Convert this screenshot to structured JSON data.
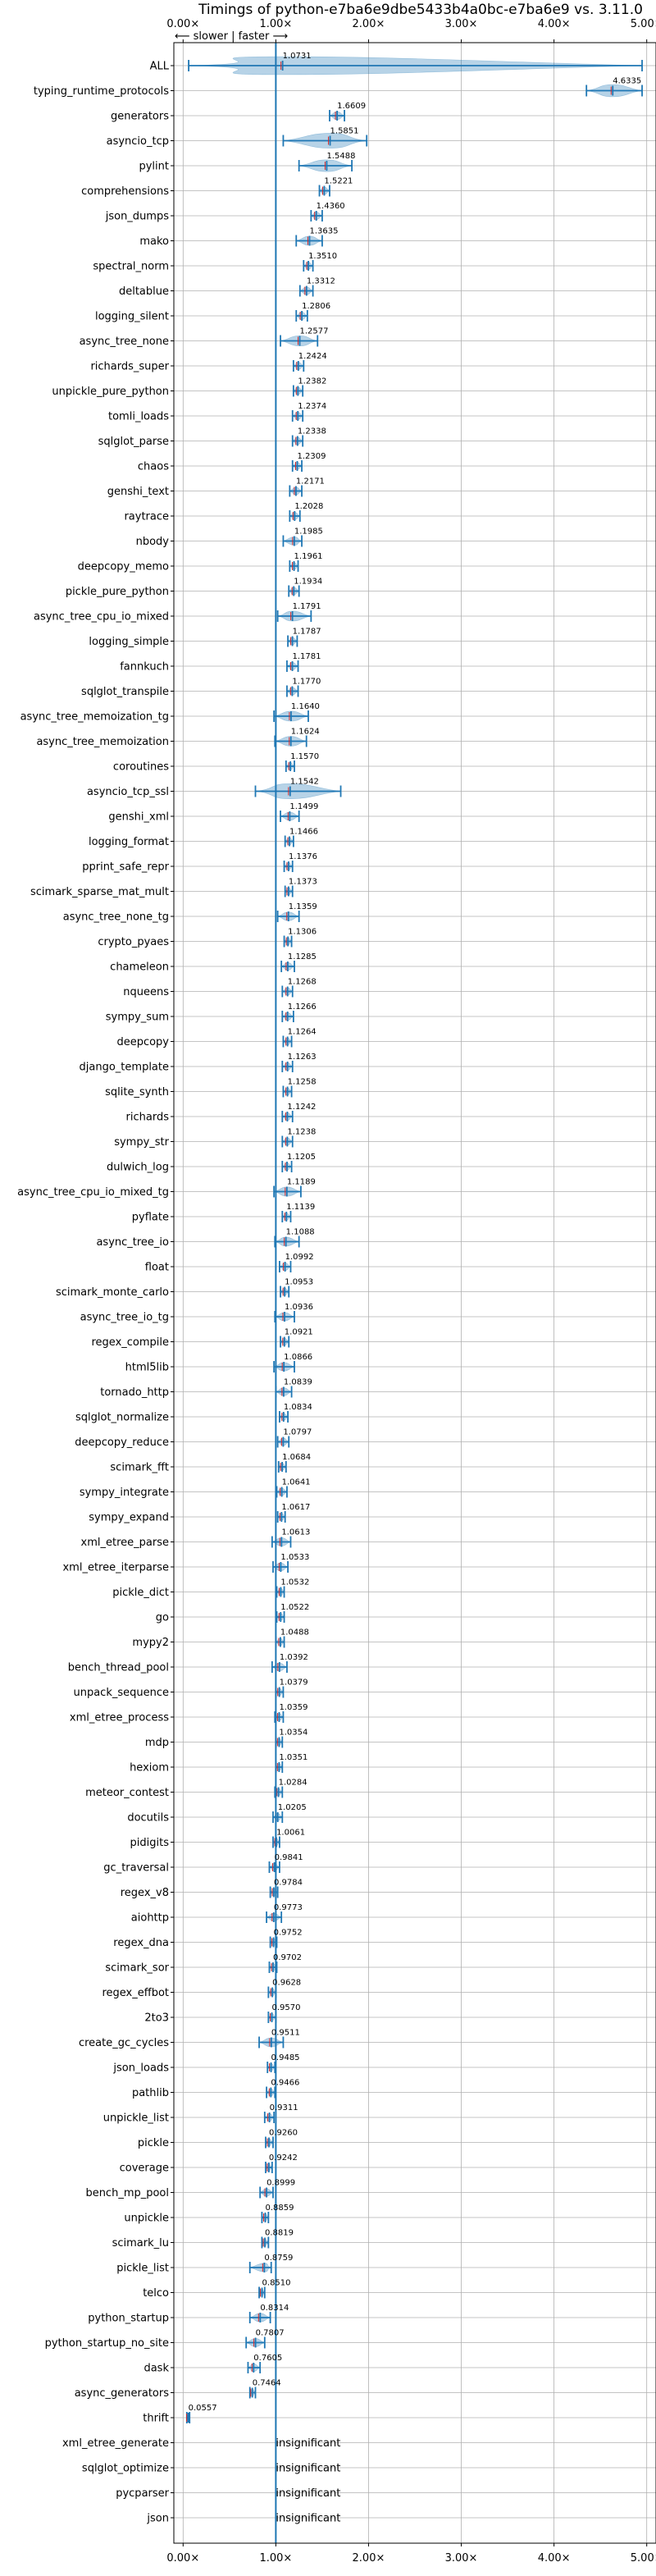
{
  "chart_data": {
    "type": "violin",
    "title": "Timings of python-e7ba6e9dbe5433b4a0bc-e7ba6e9 vs. 3.11.0",
    "annotation": "⟵ slower | faster ⟶",
    "xlabel": "",
    "ylabel": "",
    "xlim": [
      -0.1,
      5.1
    ],
    "x_ticks": [
      0,
      1,
      2,
      3,
      4,
      5
    ],
    "x_tick_labels": [
      "0.00×",
      "1.00×",
      "2.00×",
      "3.00×",
      "4.00×",
      "5.00×"
    ],
    "reference_line": 1.0,
    "grid": true,
    "insignificant_label": "insignificant",
    "colors": {
      "violin": "#1f77b4",
      "median": "#d62728",
      "reference": "#1f77b4"
    },
    "benchmarks": [
      {
        "name": "ALL",
        "value": "1.0731",
        "x": 1.0731,
        "lo": 0.06,
        "hi": 4.95
      },
      {
        "name": "typing_runtime_protocols",
        "value": "4.6335",
        "x": 4.6335,
        "lo": 4.35,
        "hi": 4.95
      },
      {
        "name": "generators",
        "value": "1.6609",
        "x": 1.6609,
        "lo": 1.58,
        "hi": 1.74
      },
      {
        "name": "asyncio_tcp",
        "value": "1.5851",
        "x": 1.5851,
        "lo": 1.08,
        "hi": 1.98
      },
      {
        "name": "pylint",
        "value": "1.5488",
        "x": 1.5488,
        "lo": 1.25,
        "hi": 1.82
      },
      {
        "name": "comprehensions",
        "value": "1.5221",
        "x": 1.5221,
        "lo": 1.47,
        "hi": 1.58
      },
      {
        "name": "json_dumps",
        "value": "1.4360",
        "x": 1.436,
        "lo": 1.38,
        "hi": 1.5
      },
      {
        "name": "mako",
        "value": "1.3635",
        "x": 1.3635,
        "lo": 1.22,
        "hi": 1.5
      },
      {
        "name": "spectral_norm",
        "value": "1.3510",
        "x": 1.351,
        "lo": 1.3,
        "hi": 1.4
      },
      {
        "name": "deltablue",
        "value": "1.3312",
        "x": 1.3312,
        "lo": 1.26,
        "hi": 1.4
      },
      {
        "name": "logging_silent",
        "value": "1.2806",
        "x": 1.2806,
        "lo": 1.22,
        "hi": 1.34
      },
      {
        "name": "async_tree_none",
        "value": "1.2577",
        "x": 1.2577,
        "lo": 1.05,
        "hi": 1.45
      },
      {
        "name": "richards_super",
        "value": "1.2424",
        "x": 1.2424,
        "lo": 1.19,
        "hi": 1.3
      },
      {
        "name": "unpickle_pure_python",
        "value": "1.2382",
        "x": 1.2382,
        "lo": 1.19,
        "hi": 1.29
      },
      {
        "name": "tomli_loads",
        "value": "1.2374",
        "x": 1.2374,
        "lo": 1.18,
        "hi": 1.29
      },
      {
        "name": "sqlglot_parse",
        "value": "1.2338",
        "x": 1.2338,
        "lo": 1.18,
        "hi": 1.29
      },
      {
        "name": "chaos",
        "value": "1.2309",
        "x": 1.2309,
        "lo": 1.18,
        "hi": 1.28
      },
      {
        "name": "genshi_text",
        "value": "1.2171",
        "x": 1.2171,
        "lo": 1.15,
        "hi": 1.28
      },
      {
        "name": "raytrace",
        "value": "1.2028",
        "x": 1.2028,
        "lo": 1.15,
        "hi": 1.26
      },
      {
        "name": "nbody",
        "value": "1.1985",
        "x": 1.1985,
        "lo": 1.08,
        "hi": 1.28
      },
      {
        "name": "deepcopy_memo",
        "value": "1.1961",
        "x": 1.1961,
        "lo": 1.15,
        "hi": 1.24
      },
      {
        "name": "pickle_pure_python",
        "value": "1.1934",
        "x": 1.1934,
        "lo": 1.14,
        "hi": 1.25
      },
      {
        "name": "async_tree_cpu_io_mixed",
        "value": "1.1791",
        "x": 1.1791,
        "lo": 1.02,
        "hi": 1.38
      },
      {
        "name": "logging_simple",
        "value": "1.1787",
        "x": 1.1787,
        "lo": 1.13,
        "hi": 1.23
      },
      {
        "name": "fannkuch",
        "value": "1.1781",
        "x": 1.1781,
        "lo": 1.12,
        "hi": 1.24
      },
      {
        "name": "sqlglot_transpile",
        "value": "1.1770",
        "x": 1.177,
        "lo": 1.12,
        "hi": 1.24
      },
      {
        "name": "async_tree_memoization_tg",
        "value": "1.1640",
        "x": 1.164,
        "lo": 0.98,
        "hi": 1.35
      },
      {
        "name": "async_tree_memoization",
        "value": "1.1624",
        "x": 1.1624,
        "lo": 0.99,
        "hi": 1.33
      },
      {
        "name": "coroutines",
        "value": "1.1570",
        "x": 1.157,
        "lo": 1.11,
        "hi": 1.2
      },
      {
        "name": "asyncio_tcp_ssl",
        "value": "1.1542",
        "x": 1.1542,
        "lo": 0.78,
        "hi": 1.7
      },
      {
        "name": "genshi_xml",
        "value": "1.1499",
        "x": 1.1499,
        "lo": 1.05,
        "hi": 1.25
      },
      {
        "name": "logging_format",
        "value": "1.1466",
        "x": 1.1466,
        "lo": 1.1,
        "hi": 1.19
      },
      {
        "name": "pprint_safe_repr",
        "value": "1.1376",
        "x": 1.1376,
        "lo": 1.09,
        "hi": 1.18
      },
      {
        "name": "scimark_sparse_mat_mult",
        "value": "1.1373",
        "x": 1.1373,
        "lo": 1.1,
        "hi": 1.18
      },
      {
        "name": "async_tree_none_tg",
        "value": "1.1359",
        "x": 1.1359,
        "lo": 1.02,
        "hi": 1.25
      },
      {
        "name": "crypto_pyaes",
        "value": "1.1306",
        "x": 1.1306,
        "lo": 1.09,
        "hi": 1.17
      },
      {
        "name": "chameleon",
        "value": "1.1285",
        "x": 1.1285,
        "lo": 1.06,
        "hi": 1.2
      },
      {
        "name": "nqueens",
        "value": "1.1268",
        "x": 1.1268,
        "lo": 1.07,
        "hi": 1.18
      },
      {
        "name": "sympy_sum",
        "value": "1.1266",
        "x": 1.1266,
        "lo": 1.07,
        "hi": 1.19
      },
      {
        "name": "deepcopy",
        "value": "1.1264",
        "x": 1.1264,
        "lo": 1.08,
        "hi": 1.17
      },
      {
        "name": "django_template",
        "value": "1.1263",
        "x": 1.1263,
        "lo": 1.07,
        "hi": 1.18
      },
      {
        "name": "sqlite_synth",
        "value": "1.1258",
        "x": 1.1258,
        "lo": 1.08,
        "hi": 1.17
      },
      {
        "name": "richards",
        "value": "1.1242",
        "x": 1.1242,
        "lo": 1.07,
        "hi": 1.18
      },
      {
        "name": "sympy_str",
        "value": "1.1238",
        "x": 1.1238,
        "lo": 1.07,
        "hi": 1.18
      },
      {
        "name": "dulwich_log",
        "value": "1.1205",
        "x": 1.1205,
        "lo": 1.07,
        "hi": 1.17
      },
      {
        "name": "async_tree_cpu_io_mixed_tg",
        "value": "1.1189",
        "x": 1.1189,
        "lo": 0.98,
        "hi": 1.27
      },
      {
        "name": "pyflate",
        "value": "1.1139",
        "x": 1.1139,
        "lo": 1.07,
        "hi": 1.16
      },
      {
        "name": "async_tree_io",
        "value": "1.1088",
        "x": 1.1088,
        "lo": 0.99,
        "hi": 1.25
      },
      {
        "name": "float",
        "value": "1.0992",
        "x": 1.0992,
        "lo": 1.04,
        "hi": 1.16
      },
      {
        "name": "scimark_monte_carlo",
        "value": "1.0953",
        "x": 1.0953,
        "lo": 1.05,
        "hi": 1.14
      },
      {
        "name": "async_tree_io_tg",
        "value": "1.0936",
        "x": 1.0936,
        "lo": 0.99,
        "hi": 1.2
      },
      {
        "name": "regex_compile",
        "value": "1.0921",
        "x": 1.0921,
        "lo": 1.05,
        "hi": 1.14
      },
      {
        "name": "html5lib",
        "value": "1.0866",
        "x": 1.0866,
        "lo": 0.98,
        "hi": 1.2
      },
      {
        "name": "tornado_http",
        "value": "1.0839",
        "x": 1.0839,
        "lo": 1.0,
        "hi": 1.17
      },
      {
        "name": "sqlglot_normalize",
        "value": "1.0834",
        "x": 1.0834,
        "lo": 1.04,
        "hi": 1.13
      },
      {
        "name": "deepcopy_reduce",
        "value": "1.0797",
        "x": 1.0797,
        "lo": 1.02,
        "hi": 1.14
      },
      {
        "name": "scimark_fft",
        "value": "1.0684",
        "x": 1.0684,
        "lo": 1.03,
        "hi": 1.11
      },
      {
        "name": "sympy_integrate",
        "value": "1.0641",
        "x": 1.0641,
        "lo": 1.01,
        "hi": 1.12
      },
      {
        "name": "sympy_expand",
        "value": "1.0617",
        "x": 1.0617,
        "lo": 1.02,
        "hi": 1.1
      },
      {
        "name": "xml_etree_parse",
        "value": "1.0613",
        "x": 1.0613,
        "lo": 0.96,
        "hi": 1.16
      },
      {
        "name": "xml_etree_iterparse",
        "value": "1.0533",
        "x": 1.0533,
        "lo": 0.97,
        "hi": 1.13
      },
      {
        "name": "pickle_dict",
        "value": "1.0532",
        "x": 1.0532,
        "lo": 1.01,
        "hi": 1.09
      },
      {
        "name": "go",
        "value": "1.0522",
        "x": 1.0522,
        "lo": 1.01,
        "hi": 1.09
      },
      {
        "name": "mypy2",
        "value": "1.0488",
        "x": 1.0488,
        "lo": 1.0,
        "hi": 1.09
      },
      {
        "name": "bench_thread_pool",
        "value": "1.0392",
        "x": 1.0392,
        "lo": 0.96,
        "hi": 1.12
      },
      {
        "name": "unpack_sequence",
        "value": "1.0379",
        "x": 1.0379,
        "lo": 1.0,
        "hi": 1.08
      },
      {
        "name": "xml_etree_process",
        "value": "1.0359",
        "x": 1.0359,
        "lo": 0.99,
        "hi": 1.08
      },
      {
        "name": "mdp",
        "value": "1.0354",
        "x": 1.0354,
        "lo": 1.0,
        "hi": 1.07
      },
      {
        "name": "hexiom",
        "value": "1.0351",
        "x": 1.0351,
        "lo": 1.0,
        "hi": 1.07
      },
      {
        "name": "meteor_contest",
        "value": "1.0284",
        "x": 1.0284,
        "lo": 0.99,
        "hi": 1.07
      },
      {
        "name": "docutils",
        "value": "1.0205",
        "x": 1.0205,
        "lo": 0.97,
        "hi": 1.07
      },
      {
        "name": "pidigits",
        "value": "1.0061",
        "x": 1.0061,
        "lo": 0.97,
        "hi": 1.04
      },
      {
        "name": "gc_traversal",
        "value": "0.9841",
        "x": 0.9841,
        "lo": 0.93,
        "hi": 1.04
      },
      {
        "name": "regex_v8",
        "value": "0.9784",
        "x": 0.9784,
        "lo": 0.94,
        "hi": 1.02
      },
      {
        "name": "aiohttp",
        "value": "0.9773",
        "x": 0.9773,
        "lo": 0.9,
        "hi": 1.06
      },
      {
        "name": "regex_dna",
        "value": "0.9752",
        "x": 0.9752,
        "lo": 0.94,
        "hi": 1.01
      },
      {
        "name": "scimark_sor",
        "value": "0.9702",
        "x": 0.9702,
        "lo": 0.93,
        "hi": 1.01
      },
      {
        "name": "regex_effbot",
        "value": "0.9628",
        "x": 0.9628,
        "lo": 0.92,
        "hi": 1.0
      },
      {
        "name": "2to3",
        "value": "0.9570",
        "x": 0.957,
        "lo": 0.92,
        "hi": 1.0
      },
      {
        "name": "create_gc_cycles",
        "value": "0.9511",
        "x": 0.9511,
        "lo": 0.82,
        "hi": 1.08
      },
      {
        "name": "json_loads",
        "value": "0.9485",
        "x": 0.9485,
        "lo": 0.91,
        "hi": 0.99
      },
      {
        "name": "pathlib",
        "value": "0.9466",
        "x": 0.9466,
        "lo": 0.9,
        "hi": 0.99
      },
      {
        "name": "unpickle_list",
        "value": "0.9311",
        "x": 0.9311,
        "lo": 0.88,
        "hi": 0.98
      },
      {
        "name": "pickle",
        "value": "0.9260",
        "x": 0.926,
        "lo": 0.89,
        "hi": 0.97
      },
      {
        "name": "coverage",
        "value": "0.9242",
        "x": 0.9242,
        "lo": 0.89,
        "hi": 0.96
      },
      {
        "name": "bench_mp_pool",
        "value": "0.8999",
        "x": 0.8999,
        "lo": 0.83,
        "hi": 0.97
      },
      {
        "name": "unpickle",
        "value": "0.8859",
        "x": 0.8859,
        "lo": 0.85,
        "hi": 0.92
      },
      {
        "name": "scimark_lu",
        "value": "0.8819",
        "x": 0.8819,
        "lo": 0.85,
        "hi": 0.92
      },
      {
        "name": "pickle_list",
        "value": "0.8759",
        "x": 0.8759,
        "lo": 0.72,
        "hi": 0.95
      },
      {
        "name": "telco",
        "value": "0.8510",
        "x": 0.851,
        "lo": 0.82,
        "hi": 0.88
      },
      {
        "name": "python_startup",
        "value": "0.8314",
        "x": 0.8314,
        "lo": 0.72,
        "hi": 0.94
      },
      {
        "name": "python_startup_no_site",
        "value": "0.7807",
        "x": 0.7807,
        "lo": 0.68,
        "hi": 0.88
      },
      {
        "name": "dask",
        "value": "0.7605",
        "x": 0.7605,
        "lo": 0.7,
        "hi": 0.83
      },
      {
        "name": "async_generators",
        "value": "0.7464",
        "x": 0.7464,
        "lo": 0.72,
        "hi": 0.78
      },
      {
        "name": "thrift",
        "value": "0.0557",
        "x": 0.0557,
        "lo": 0.04,
        "hi": 0.07
      },
      {
        "name": "xml_etree_generate",
        "insignificant": true
      },
      {
        "name": "sqlglot_optimize",
        "insignificant": true
      },
      {
        "name": "pycparser",
        "insignificant": true
      },
      {
        "name": "json",
        "insignificant": true
      }
    ]
  }
}
